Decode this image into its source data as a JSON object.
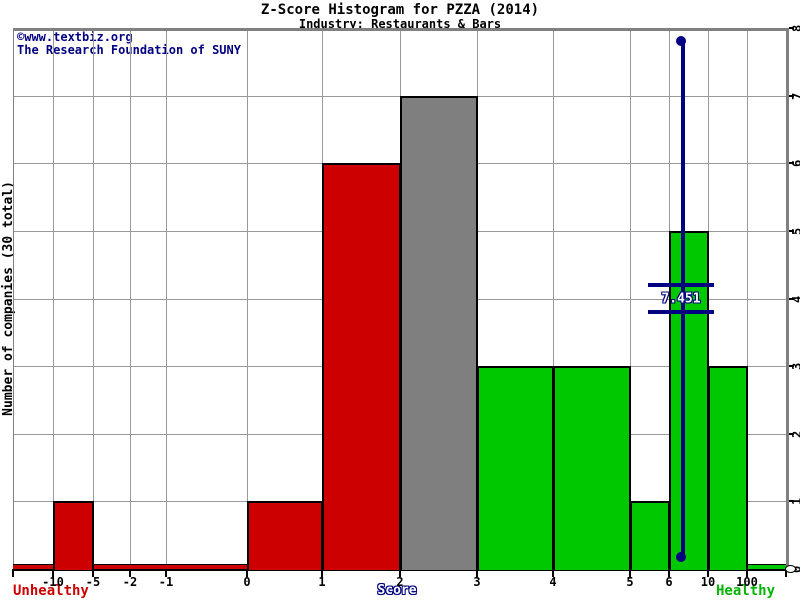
{
  "watermark": {
    "line1": "©www.textbiz.org",
    "line2": "The Research Foundation of SUNY"
  },
  "colors": {
    "unhealthy": "#cc0000",
    "healthy": "#00c800",
    "neutral": "#7f7f7f",
    "marker": "#000080",
    "grid": "#999999",
    "border": "#808080",
    "axis": "#000000",
    "navy_text": "#000080",
    "healthy_text": "#00b400",
    "unhealthy_text": "#cc0000"
  },
  "chart_data": {
    "type": "bar",
    "title": "Z-Score Histogram for PZZA (2014)",
    "subtitle": "Industry: Restaurants & Bars",
    "xlabel": "Score",
    "ylabel": "Number of companies (30 total)",
    "ylim": [
      0,
      8
    ],
    "grid": true,
    "legend_position": "none",
    "y_ticks": [
      "0",
      "1",
      "2",
      "3",
      "4",
      "5",
      "6",
      "7",
      "8"
    ],
    "x_ticks": [
      "-10",
      "-5",
      "-2",
      "-1",
      "0",
      "1",
      "2",
      "3",
      "4",
      "5",
      "6",
      "10",
      "100"
    ],
    "zone_labels": {
      "unhealthy": "Unhealthy",
      "healthy": "Healthy"
    },
    "bins": [
      {
        "from": "-10",
        "to": "-5",
        "count": 1,
        "zone": "unhealthy"
      },
      {
        "from": "0",
        "to": "1",
        "count": 1,
        "zone": "unhealthy"
      },
      {
        "from": "1",
        "to": "2",
        "count": 6,
        "zone": "unhealthy"
      },
      {
        "from": "2",
        "to": "3",
        "count": 7,
        "zone": "neutral"
      },
      {
        "from": "3",
        "to": "4",
        "count": 3,
        "zone": "healthy"
      },
      {
        "from": "4",
        "to": "5",
        "count": 3,
        "zone": "healthy"
      },
      {
        "from": "5",
        "to": "6",
        "count": 1,
        "zone": "healthy"
      },
      {
        "from": "6",
        "to": "10",
        "count": 5,
        "zone": "healthy"
      },
      {
        "from": "10",
        "to": "100",
        "count": 3,
        "zone": "healthy"
      }
    ],
    "baseline_zones": [
      {
        "from": "left_edge",
        "to": "0",
        "zone": "unhealthy"
      },
      {
        "from": "100",
        "to": "right_edge",
        "zone": "healthy"
      }
    ],
    "marker": {
      "label": "7.451",
      "value": 7.451,
      "between": [
        "6",
        "10"
      ]
    }
  }
}
